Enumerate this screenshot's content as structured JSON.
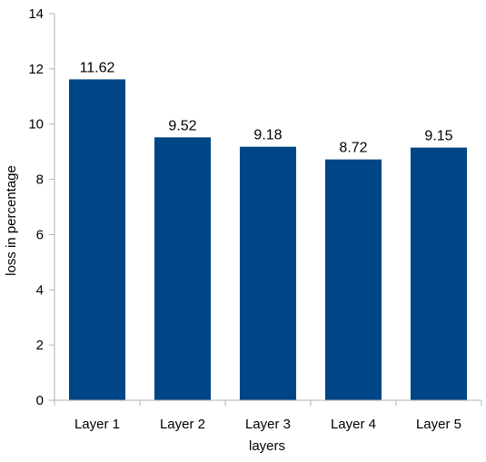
{
  "chart_data": {
    "type": "bar",
    "categories": [
      "Layer 1",
      "Layer 2",
      "Layer 3",
      "Layer 4",
      "Layer 5"
    ],
    "values": [
      11.62,
      9.52,
      9.18,
      8.72,
      9.15
    ],
    "data_labels": [
      "11.62",
      "9.52",
      "9.18",
      "8.72",
      "9.15"
    ],
    "xlabel": "layers",
    "ylabel": "loss in percentage",
    "ylim": [
      0,
      14
    ],
    "yticks": [
      0,
      2,
      4,
      6,
      8,
      10,
      12,
      14
    ],
    "grid": false,
    "legend": "none",
    "bar_color": "#004586"
  }
}
